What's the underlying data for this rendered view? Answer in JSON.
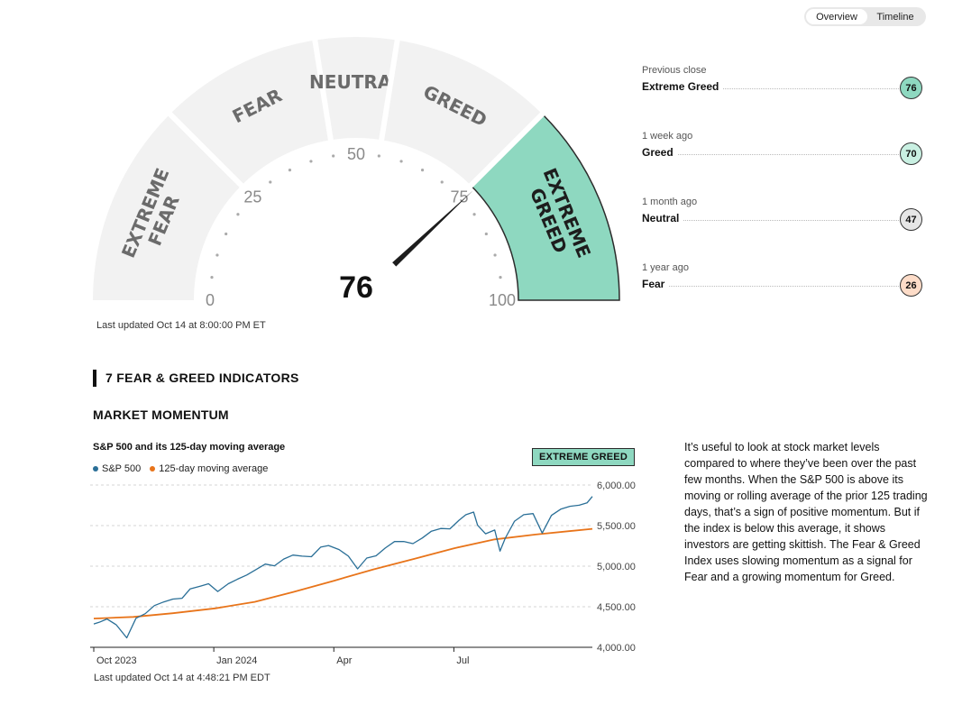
{
  "view_toggle": {
    "options": [
      "Overview",
      "Timeline"
    ],
    "active": "Overview"
  },
  "gauge": {
    "value": 76,
    "value_label": "76",
    "segments": [
      {
        "label_lines": [
          "EXTREME",
          "FEAR"
        ],
        "range": [
          0,
          25
        ]
      },
      {
        "label_lines": [
          "FEAR"
        ],
        "range": [
          25,
          45
        ]
      },
      {
        "label_lines": [
          "NEUTRAL"
        ],
        "range": [
          45,
          55
        ]
      },
      {
        "label_lines": [
          "GREED"
        ],
        "range": [
          55,
          75
        ]
      },
      {
        "label_lines": [
          "EXTREME",
          "GREED"
        ],
        "range": [
          75,
          100
        ]
      }
    ],
    "active_segment": 4,
    "ticks": [
      "0",
      "25",
      "50",
      "75",
      "100"
    ],
    "colors": {
      "inactive": "#f2f2f2",
      "active": "#8ed8c0",
      "label": "#6b6b6b",
      "label_active": "#1d1d1d",
      "needle": "#1d1d1d",
      "dots": "#aaaaaa"
    },
    "last_updated": "Last updated Oct 14 at 8:00:00 PM ET"
  },
  "history": [
    {
      "when": "Previous close",
      "rating": "Extreme Greed",
      "value": "76",
      "color": "#8ed8c0"
    },
    {
      "when": "1 week ago",
      "rating": "Greed",
      "value": "70",
      "color": "#c9f0e2"
    },
    {
      "when": "1 month ago",
      "rating": "Neutral",
      "value": "47",
      "color": "#e6e6e6"
    },
    {
      "when": "1 year ago",
      "rating": "Fear",
      "value": "26",
      "color": "#fddcc8"
    }
  ],
  "indicators_section": {
    "title": "7 FEAR & GREED INDICATORS"
  },
  "market_momentum": {
    "title": "MARKET MOMENTUM",
    "chart_title": "S&P 500 and its 125-day moving average",
    "rating_label": "EXTREME GREED",
    "description": "It’s useful to look at stock market levels compared to where they’ve been over the past few months. When the S&P 500 is above its moving or rolling average of the prior 125 trading days, that’s a sign of positive momentum. But if the index is below this average, it shows investors are getting skittish. The Fear & Greed Index uses slowing momentum as a signal for Fear and a growing momentum for Greed.",
    "last_updated": "Last updated Oct 14 at 4:48:21 PM EDT"
  },
  "chart_data": {
    "type": "line",
    "title": "S&P 500 and its 125-day moving average",
    "x_domain": [
      "2023-10-02",
      "2024-10-14"
    ],
    "ylim": [
      4000,
      6000
    ],
    "y_ticks": [
      4000,
      4500,
      5000,
      5500,
      6000
    ],
    "y_tick_labels": [
      "4,000.00",
      "4,500.00",
      "5,000.00",
      "5,500.00",
      "6,000.00"
    ],
    "x_ticks": [
      {
        "date": "2023-10-02",
        "label": "Oct 2023"
      },
      {
        "date": "2024-01-01",
        "label": "Jan 2024"
      },
      {
        "date": "2024-04-01",
        "label": "Apr"
      },
      {
        "date": "2024-07-01",
        "label": "Jul"
      }
    ],
    "grid": "horizontal dashed",
    "legend_position": "top-left",
    "series": [
      {
        "name": "S&P 500",
        "color": "#2a6f97",
        "points": [
          [
            "2023-10-02",
            4288
          ],
          [
            "2023-10-06",
            4308
          ],
          [
            "2023-10-12",
            4349
          ],
          [
            "2023-10-19",
            4278
          ],
          [
            "2023-10-27",
            4117
          ],
          [
            "2023-11-03",
            4358
          ],
          [
            "2023-11-10",
            4415
          ],
          [
            "2023-11-17",
            4514
          ],
          [
            "2023-11-24",
            4559
          ],
          [
            "2023-12-01",
            4594
          ],
          [
            "2023-12-08",
            4604
          ],
          [
            "2023-12-14",
            4719
          ],
          [
            "2023-12-22",
            4754
          ],
          [
            "2023-12-28",
            4783
          ],
          [
            "2024-01-04",
            4688
          ],
          [
            "2024-01-12",
            4783
          ],
          [
            "2024-01-19",
            4840
          ],
          [
            "2024-01-26",
            4891
          ],
          [
            "2024-02-02",
            4958
          ],
          [
            "2024-02-09",
            5026
          ],
          [
            "2024-02-16",
            5005
          ],
          [
            "2024-02-23",
            5088
          ],
          [
            "2024-03-01",
            5137
          ],
          [
            "2024-03-08",
            5123
          ],
          [
            "2024-03-15",
            5117
          ],
          [
            "2024-03-22",
            5234
          ],
          [
            "2024-03-28",
            5254
          ],
          [
            "2024-04-05",
            5204
          ],
          [
            "2024-04-12",
            5123
          ],
          [
            "2024-04-19",
            4967
          ],
          [
            "2024-04-26",
            5100
          ],
          [
            "2024-05-03",
            5128
          ],
          [
            "2024-05-10",
            5223
          ],
          [
            "2024-05-17",
            5303
          ],
          [
            "2024-05-24",
            5305
          ],
          [
            "2024-05-31",
            5278
          ],
          [
            "2024-06-07",
            5347
          ],
          [
            "2024-06-14",
            5431
          ],
          [
            "2024-06-21",
            5465
          ],
          [
            "2024-06-28",
            5460
          ],
          [
            "2024-07-05",
            5567
          ],
          [
            "2024-07-10",
            5633
          ],
          [
            "2024-07-16",
            5667
          ],
          [
            "2024-07-19",
            5505
          ],
          [
            "2024-07-25",
            5399
          ],
          [
            "2024-08-01",
            5446
          ],
          [
            "2024-08-05",
            5186
          ],
          [
            "2024-08-09",
            5344
          ],
          [
            "2024-08-16",
            5554
          ],
          [
            "2024-08-23",
            5634
          ],
          [
            "2024-08-30",
            5648
          ],
          [
            "2024-09-06",
            5408
          ],
          [
            "2024-09-13",
            5626
          ],
          [
            "2024-09-20",
            5702
          ],
          [
            "2024-09-27",
            5738
          ],
          [
            "2024-10-04",
            5751
          ],
          [
            "2024-10-10",
            5780
          ],
          [
            "2024-10-14",
            5859
          ]
        ]
      },
      {
        "name": "125-day moving average",
        "color": "#e8741a",
        "points": [
          [
            "2023-10-02",
            4355
          ],
          [
            "2023-11-01",
            4375
          ],
          [
            "2023-12-01",
            4420
          ],
          [
            "2024-01-02",
            4480
          ],
          [
            "2024-02-01",
            4560
          ],
          [
            "2024-03-01",
            4680
          ],
          [
            "2024-04-01",
            4820
          ],
          [
            "2024-05-01",
            4960
          ],
          [
            "2024-06-01",
            5090
          ],
          [
            "2024-07-01",
            5220
          ],
          [
            "2024-08-01",
            5330
          ],
          [
            "2024-09-01",
            5390
          ],
          [
            "2024-10-14",
            5460
          ]
        ]
      }
    ]
  }
}
